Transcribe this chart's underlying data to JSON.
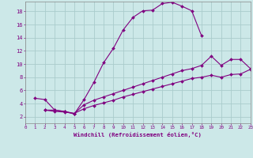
{
  "title": "",
  "xlabel": "Windchill (Refroidissement éolien,°C)",
  "bg_color": "#cce8e8",
  "line_color": "#800080",
  "grid_color": "#aacccc",
  "xmin": 0,
  "xmax": 23,
  "ymin": 1,
  "ymax": 19.5,
  "line1_x": [
    1,
    2,
    3,
    4,
    5,
    6,
    7,
    8,
    9,
    10,
    11,
    12,
    13,
    14,
    15,
    16,
    17,
    18
  ],
  "line1_y": [
    4.8,
    4.6,
    3.0,
    2.8,
    2.4,
    4.6,
    7.2,
    10.2,
    12.4,
    15.2,
    17.1,
    18.1,
    18.2,
    19.2,
    19.4,
    18.8,
    18.1,
    14.3
  ],
  "line2_x": [
    2,
    3,
    4,
    5,
    6,
    7,
    8,
    9,
    10,
    11,
    12,
    13,
    14,
    15,
    16,
    17,
    18,
    19,
    20,
    21,
    22,
    23
  ],
  "line2_y": [
    3.0,
    3.0,
    2.8,
    2.5,
    3.8,
    4.5,
    5.0,
    5.5,
    6.0,
    6.5,
    7.0,
    7.5,
    8.0,
    8.5,
    9.0,
    9.3,
    9.8,
    11.2,
    9.8,
    10.7,
    10.7,
    9.3
  ],
  "line3_x": [
    2,
    3,
    4,
    5,
    6,
    7,
    8,
    9,
    10,
    11,
    12,
    13,
    14,
    15,
    16,
    17,
    18,
    19,
    20,
    21,
    22,
    23
  ],
  "line3_y": [
    3.0,
    2.8,
    2.7,
    2.5,
    3.2,
    3.7,
    4.1,
    4.5,
    5.0,
    5.4,
    5.8,
    6.2,
    6.6,
    7.0,
    7.4,
    7.8,
    8.0,
    8.3,
    8.0,
    8.4,
    8.5,
    9.2
  ],
  "xtick_vals": [
    0,
    1,
    2,
    3,
    4,
    5,
    6,
    7,
    8,
    9,
    10,
    11,
    12,
    13,
    14,
    15,
    16,
    17,
    18,
    19,
    20,
    21,
    22,
    23
  ],
  "xtick_labels": [
    "0",
    "1",
    "2",
    "3",
    "4",
    "5",
    "6",
    "7",
    "8",
    "9",
    "10",
    "11",
    "12",
    "13",
    "14",
    "15",
    "16",
    "17",
    "18",
    "19",
    "20",
    "21",
    "22",
    "23"
  ],
  "ytick_vals": [
    2,
    4,
    6,
    8,
    10,
    12,
    14,
    16,
    18
  ],
  "ytick_labels": [
    "2",
    "4",
    "6",
    "8",
    "10",
    "12",
    "14",
    "16",
    "18"
  ],
  "marker": "D",
  "markersize": 2.0,
  "linewidth": 0.8,
  "xtick_fontsize": 4.2,
  "ytick_fontsize": 5.0,
  "xlabel_fontsize": 5.2
}
